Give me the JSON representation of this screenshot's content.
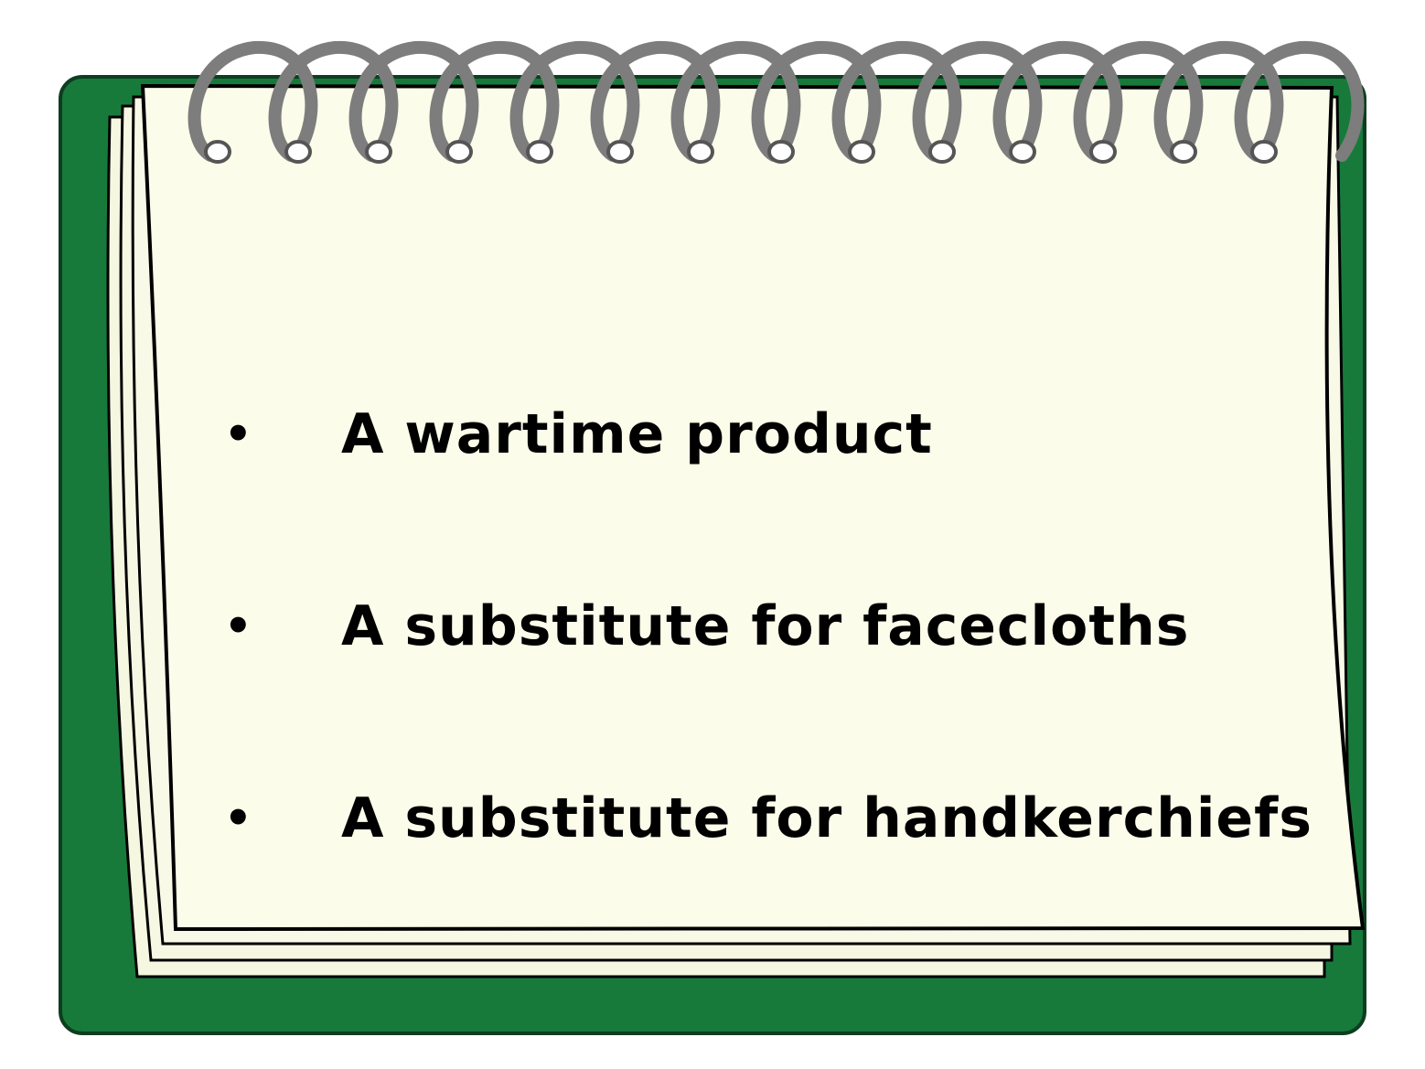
{
  "notepad": {
    "cover_color": "#177a3b",
    "page_color": "#fbfcea",
    "spiral_color": "#7d7d7d",
    "items": [
      {
        "bullet": "•",
        "text": "A wartime product"
      },
      {
        "bullet": "•",
        "text": "A substitute for facecloths"
      },
      {
        "bullet": "•",
        "text": "A substitute for handkerchiefs"
      }
    ]
  }
}
